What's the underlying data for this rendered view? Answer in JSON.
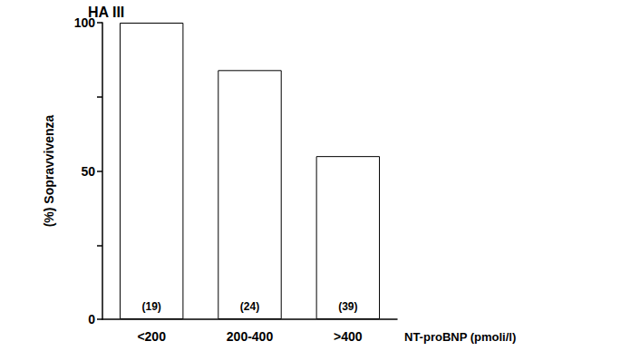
{
  "chart_data": {
    "type": "bar",
    "title": "HA III",
    "categories": [
      "<200",
      "200-400",
      ">400"
    ],
    "values": [
      100,
      84,
      55
    ],
    "annotations": [
      "(19)",
      "(24)",
      "(39)"
    ],
    "color": "#ffffff",
    "x_label": "NT-proBNP (pmoli/l)",
    "y_label": "(%) Sopravvivenza",
    "ylim": [
      0,
      100
    ],
    "yticks": [
      0,
      50,
      100
    ],
    "grid": false
  }
}
